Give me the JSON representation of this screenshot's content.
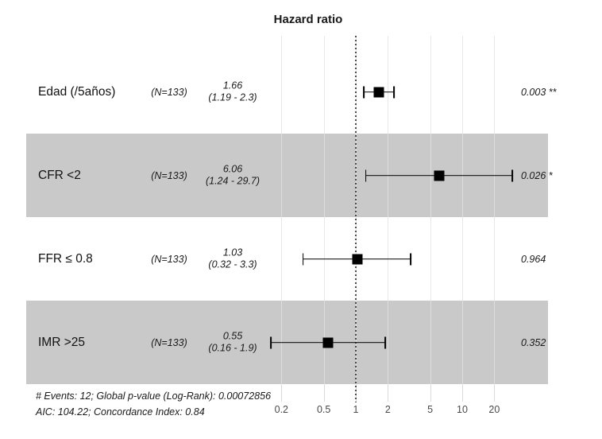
{
  "title": "Hazard ratio",
  "chart_data": {
    "type": "forest",
    "x_scale": "log10",
    "xlim": [
      0.2,
      20
    ],
    "xticks": [
      0.2,
      0.5,
      1,
      2,
      5,
      10,
      20
    ],
    "xtick_labels": [
      "0.2",
      "0.5",
      "1",
      "2",
      "5",
      "10",
      "20"
    ],
    "reference_line": 1,
    "grid": true,
    "rows": [
      {
        "label": "Edad (/5años)",
        "n_label": "(N=133)",
        "estimate": 1.66,
        "ci_low": 1.19,
        "ci_high": 2.3,
        "estimate_label": "1.66",
        "ci_label": "(1.19 - 2.3)",
        "p_label": "0.003 **",
        "shaded": false
      },
      {
        "label": "CFR <2",
        "n_label": "(N=133)",
        "estimate": 6.06,
        "ci_low": 1.24,
        "ci_high": 29.7,
        "estimate_label": "6.06",
        "ci_label": "(1.24 - 29.7)",
        "p_label": "0.026 *",
        "shaded": true
      },
      {
        "label": "FFR ≤ 0.8",
        "n_label": "(N=133)",
        "estimate": 1.03,
        "ci_low": 0.32,
        "ci_high": 3.3,
        "estimate_label": "1.03",
        "ci_label": "(0.32 - 3.3)",
        "p_label": "0.964",
        "shaded": false
      },
      {
        "label": "IMR >25",
        "n_label": "(N=133)",
        "estimate": 0.55,
        "ci_low": 0.16,
        "ci_high": 1.9,
        "estimate_label": "0.55",
        "ci_label": "(0.16 - 1.9)",
        "p_label": "0.352",
        "shaded": true
      }
    ]
  },
  "footer": {
    "line1": "# Events: 12; Global p-value (Log-Rank): 0.00072856",
    "line2": "AIC: 104.22; Concordance Index: 0.84"
  },
  "colors": {
    "band": "#c9c9c9",
    "gridline": "#e3e3e3",
    "reference_line": "#4a4a4a",
    "marker": "#000000",
    "tick_label": "#4a4a4a",
    "text": "#1a1a1a"
  }
}
